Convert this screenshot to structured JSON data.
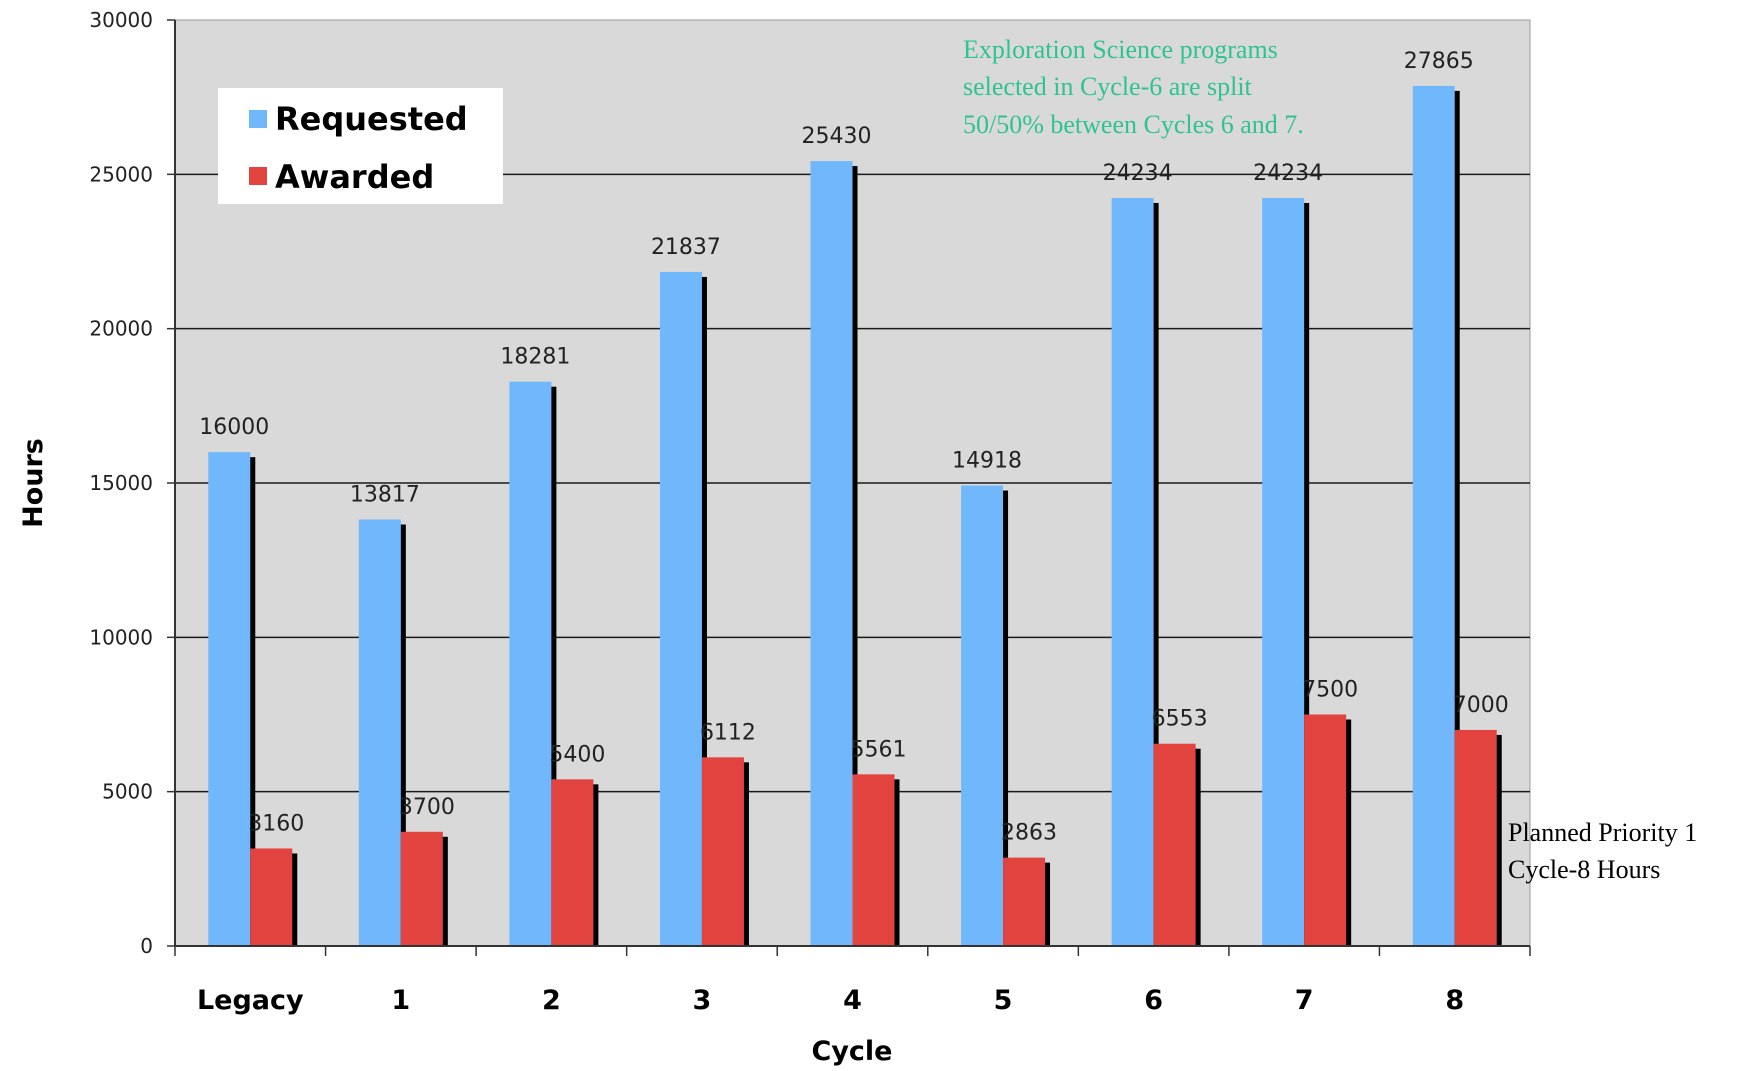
{
  "chart_data": {
    "type": "bar",
    "categories": [
      "Legacy",
      "1",
      "2",
      "3",
      "4",
      "5",
      "6",
      "7",
      "8"
    ],
    "series": [
      {
        "name": "Requested",
        "color": "#70b8fb",
        "values": [
          16000,
          13817,
          18281,
          21837,
          25430,
          14918,
          24234,
          24234,
          27865
        ]
      },
      {
        "name": "Awarded",
        "color": "#e2433f",
        "values": [
          3160,
          3700,
          5400,
          6112,
          5561,
          2863,
          6553,
          7500,
          7000
        ]
      }
    ],
    "title": "",
    "xlabel": "Cycle",
    "ylabel": "Hours",
    "ylim": [
      0,
      30000
    ],
    "yticks": [
      0,
      5000,
      10000,
      15000,
      20000,
      25000,
      30000
    ],
    "grid": true,
    "legend_position": "top-left",
    "plot_background": "#d9d9d9",
    "annotations": {
      "note_top": [
        "Exploration Science programs",
        "selected in Cycle-6 are split",
        "50/50% between Cycles 6 and 7."
      ],
      "note_right": [
        "Planned Priority 1",
        "Cycle-8 Hours"
      ]
    }
  }
}
